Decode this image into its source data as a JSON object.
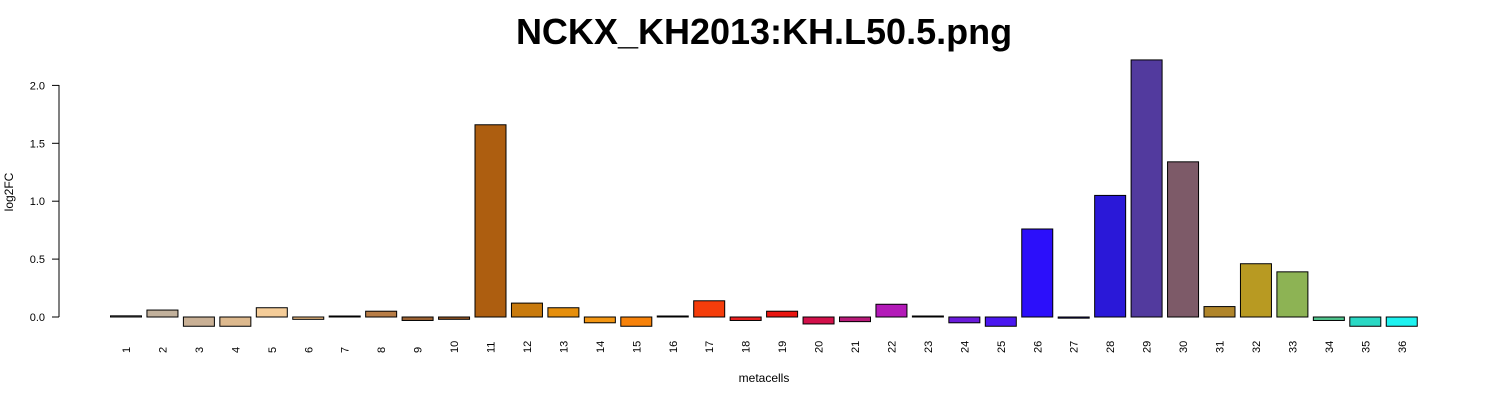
{
  "chart_data": {
    "type": "bar",
    "title": "NCKX_KH2013:KH.L50.5.png",
    "xlabel": "metacells",
    "ylabel": "log2FC",
    "ylim": [
      -0.1,
      2.25
    ],
    "yticks": [
      "0.0",
      "0.5",
      "1.0",
      "1.5",
      "2.0"
    ],
    "ytick_values": [
      0,
      0.5,
      1.0,
      1.5,
      2.0
    ],
    "categories": [
      "1",
      "2",
      "3",
      "4",
      "5",
      "6",
      "7",
      "8",
      "9",
      "10",
      "11",
      "12",
      "13",
      "14",
      "15",
      "16",
      "17",
      "18",
      "19",
      "20",
      "21",
      "22",
      "23",
      "24",
      "25",
      "26",
      "27",
      "28",
      "29",
      "30",
      "31",
      "32",
      "33",
      "34",
      "35",
      "36"
    ],
    "values": [
      0.01,
      0.06,
      -0.08,
      -0.08,
      0.08,
      -0.02,
      0.0,
      0.05,
      -0.03,
      -0.02,
      1.66,
      0.12,
      0.08,
      -0.05,
      -0.08,
      0.0,
      0.14,
      -0.03,
      0.05,
      -0.06,
      -0.04,
      0.11,
      0.0,
      -0.05,
      -0.08,
      0.76,
      -0.01,
      1.05,
      2.22,
      1.34,
      0.09,
      0.46,
      0.39,
      -0.03,
      -0.08,
      -0.08
    ],
    "colors": [
      "#b5b5b5",
      "#c2b19c",
      "#c9b095",
      "#ddb98e",
      "#f5cd99",
      "#f0be84",
      "#e8d4b8",
      "#b87d46",
      "#9c6233",
      "#9c5a26",
      "#ad5e10",
      "#c87a0d",
      "#e68f0c",
      "#f29512",
      "#f7820a",
      "#e39d8d",
      "#f53d0b",
      "#ea2020",
      "#ea1510",
      "#d2104a",
      "#b81a78",
      "#b31ab8",
      "#8f1cc4",
      "#6a1bdb",
      "#4a17f0",
      "#2c0ffa",
      "#2718e8",
      "#2a18d8",
      "#523a9e",
      "#7d5a68",
      "#b0852a",
      "#b89a22",
      "#8db354",
      "#4fc48d",
      "#2ad8c4",
      "#1ef2f0"
    ],
    "grid": false,
    "legend": "none"
  }
}
